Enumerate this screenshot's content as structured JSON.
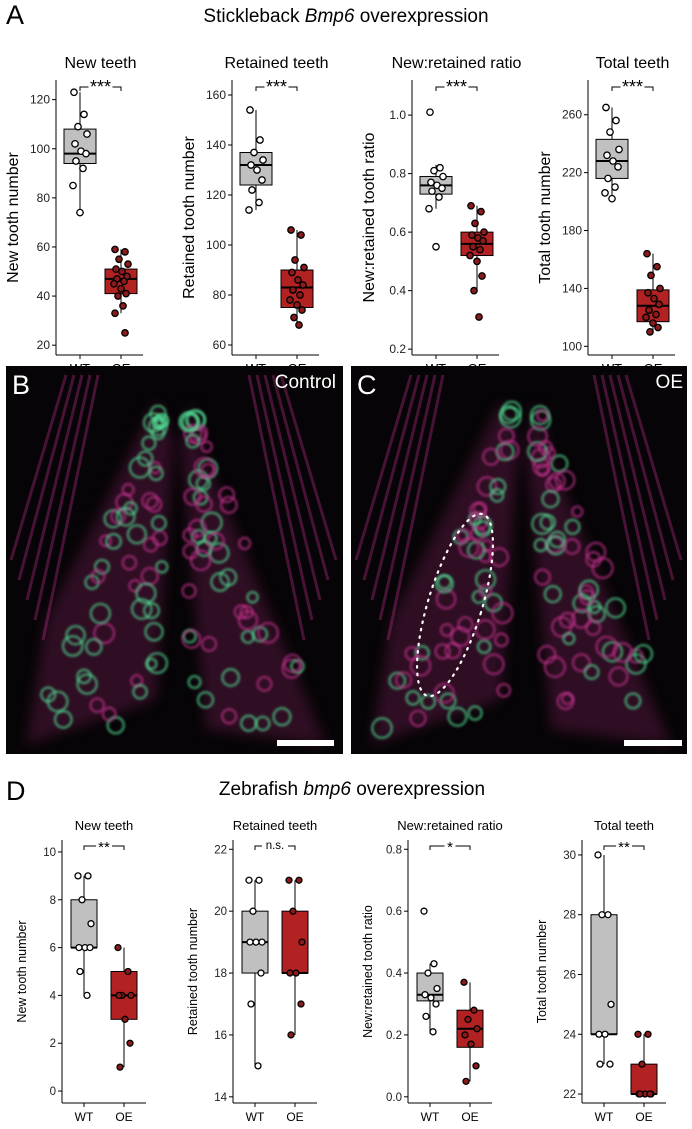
{
  "figure": {
    "panel_a": {
      "letter": "A",
      "title_prefix": "Stickleback ",
      "title_gene": "Bmp6",
      "title_suffix": " overexpression"
    },
    "panel_b": {
      "letter": "B",
      "label": "Control"
    },
    "panel_c": {
      "letter": "C",
      "label": "OE"
    },
    "panel_d": {
      "letter": "D",
      "title_prefix": "Zebrafish ",
      "title_gene": "bmp6",
      "title_suffix": " overexpression"
    }
  },
  "colors": {
    "wt_fill": "#c0c0c0",
    "oe_fill": "#b22222",
    "oe_point": "#8b1a1a",
    "wt_point": "#ffffff",
    "micrograph_bg": "#060406",
    "magenta": "#c0308a",
    "green": "#50d890"
  },
  "chart_data": [
    {
      "type": "box",
      "panel": "A",
      "title": "New teeth",
      "ylabel": "New tooth number",
      "categories": [
        "WT",
        "OE"
      ],
      "ylim": [
        16,
        128
      ],
      "yticks": [
        20,
        40,
        60,
        80,
        100,
        120
      ],
      "significance": "***",
      "series": [
        {
          "category": "WT",
          "box": {
            "min": 74,
            "q1": 94,
            "median": 98,
            "q3": 108,
            "max": 123
          },
          "points": [
            123,
            114,
            109,
            106,
            102,
            99,
            98,
            95,
            92,
            85,
            74
          ]
        },
        {
          "category": "OE",
          "box": {
            "min": 33,
            "q1": 41,
            "median": 47,
            "q3": 51,
            "max": 59
          },
          "points": [
            59,
            58,
            55,
            53,
            51,
            50,
            48,
            47,
            46,
            45,
            43,
            41,
            40,
            36,
            33,
            25
          ]
        }
      ]
    },
    {
      "type": "box",
      "panel": "A",
      "title": "Retained teeth",
      "ylabel": "Retained tooth number",
      "categories": [
        "WT",
        "OE"
      ],
      "ylim": [
        56,
        166
      ],
      "yticks": [
        60,
        80,
        100,
        120,
        140,
        160
      ],
      "significance": "***",
      "series": [
        {
          "category": "WT",
          "box": {
            "min": 114,
            "q1": 124,
            "median": 132,
            "q3": 137,
            "max": 154
          },
          "points": [
            154,
            142,
            137,
            134,
            132,
            130,
            126,
            122,
            117,
            114
          ]
        },
        {
          "category": "OE",
          "box": {
            "min": 68,
            "q1": 75,
            "median": 83,
            "q3": 90,
            "max": 106
          },
          "points": [
            106,
            104,
            94,
            91,
            89,
            86,
            84,
            82,
            80,
            78,
            76,
            74,
            71,
            68
          ]
        }
      ]
    },
    {
      "type": "box",
      "panel": "A",
      "title": "New:retained ratio",
      "ylabel": "New:retained tooth ratio",
      "categories": [
        "WT",
        "OE"
      ],
      "ylim": [
        0.18,
        1.12
      ],
      "yticks": [
        0.2,
        0.4,
        0.6,
        0.8,
        1.0
      ],
      "significance": "***",
      "series": [
        {
          "category": "WT",
          "box": {
            "min": 0.68,
            "q1": 0.73,
            "median": 0.76,
            "q3": 0.79,
            "max": 0.83
          },
          "points": [
            1.01,
            0.82,
            0.81,
            0.79,
            0.77,
            0.76,
            0.75,
            0.74,
            0.72,
            0.68,
            0.55
          ]
        },
        {
          "category": "OE",
          "box": {
            "min": 0.4,
            "q1": 0.52,
            "median": 0.56,
            "q3": 0.6,
            "max": 0.69
          },
          "points": [
            0.69,
            0.67,
            0.63,
            0.6,
            0.59,
            0.58,
            0.57,
            0.55,
            0.54,
            0.52,
            0.5,
            0.45,
            0.4,
            0.31
          ]
        }
      ]
    },
    {
      "type": "box",
      "panel": "A",
      "title": "Total teeth",
      "ylabel": "Total tooth number",
      "categories": [
        "WT",
        "OE"
      ],
      "ylim": [
        94,
        284
      ],
      "yticks": [
        100,
        140,
        180,
        220,
        260
      ],
      "significance": "***",
      "series": [
        {
          "category": "WT",
          "box": {
            "min": 202,
            "q1": 216,
            "median": 228,
            "q3": 243,
            "max": 265
          },
          "points": [
            265,
            256,
            248,
            236,
            232,
            228,
            224,
            216,
            210,
            206,
            202
          ]
        },
        {
          "category": "OE",
          "box": {
            "min": 110,
            "q1": 117,
            "median": 128,
            "q3": 139,
            "max": 164
          },
          "points": [
            164,
            155,
            149,
            140,
            137,
            133,
            129,
            125,
            122,
            120,
            116,
            113,
            110
          ]
        }
      ]
    },
    {
      "type": "box",
      "panel": "D",
      "title": "New teeth",
      "ylabel": "New tooth number",
      "categories": [
        "WT",
        "OE"
      ],
      "ylim": [
        -0.5,
        10.5
      ],
      "yticks": [
        0,
        2,
        4,
        6,
        8,
        10
      ],
      "significance": "**",
      "series": [
        {
          "category": "WT",
          "box": {
            "min": 4,
            "q1": 6,
            "median": 6,
            "q3": 8,
            "max": 9
          },
          "points": [
            9,
            9,
            8,
            7,
            6,
            6,
            6,
            5,
            4
          ]
        },
        {
          "category": "OE",
          "box": {
            "min": 1,
            "q1": 3,
            "median": 4,
            "q3": 5,
            "max": 6
          },
          "points": [
            6,
            5,
            4,
            4,
            4,
            3,
            2,
            1
          ]
        }
      ]
    },
    {
      "type": "box",
      "panel": "D",
      "title": "Retained teeth",
      "ylabel": "Retained tooth number",
      "categories": [
        "WT",
        "OE"
      ],
      "ylim": [
        13.8,
        22.3
      ],
      "yticks": [
        14,
        16,
        18,
        20,
        22
      ],
      "significance": "n.s.",
      "series": [
        {
          "category": "WT",
          "box": {
            "min": 15,
            "q1": 18,
            "median": 19,
            "q3": 20,
            "max": 21
          },
          "points": [
            21,
            21,
            20,
            19,
            19,
            19,
            18,
            17,
            15
          ]
        },
        {
          "category": "OE",
          "box": {
            "min": 16,
            "q1": 18,
            "median": 18,
            "q3": 20,
            "max": 21
          },
          "points": [
            21,
            21,
            20,
            19,
            18,
            18,
            17,
            16
          ]
        }
      ]
    },
    {
      "type": "box",
      "panel": "D",
      "title": "New:retained ratio",
      "ylabel": "New:retained tooth ratio",
      "categories": [
        "WT",
        "OE"
      ],
      "ylim": [
        -0.02,
        0.83
      ],
      "yticks": [
        0.0,
        0.2,
        0.4,
        0.6,
        0.8
      ],
      "significance": "*",
      "series": [
        {
          "category": "WT",
          "box": {
            "min": 0.21,
            "q1": 0.31,
            "median": 0.33,
            "q3": 0.4,
            "max": 0.43
          },
          "points": [
            0.6,
            0.43,
            0.4,
            0.35,
            0.33,
            0.32,
            0.3,
            0.26,
            0.21
          ]
        },
        {
          "category": "OE",
          "box": {
            "min": 0.05,
            "q1": 0.16,
            "median": 0.22,
            "q3": 0.28,
            "max": 0.37
          },
          "points": [
            0.37,
            0.28,
            0.25,
            0.22,
            0.2,
            0.17,
            0.1,
            0.05
          ]
        }
      ]
    },
    {
      "type": "box",
      "panel": "D",
      "title": "Total teeth",
      "ylabel": "Total tooth number",
      "categories": [
        "WT",
        "OE"
      ],
      "ylim": [
        21.7,
        30.5
      ],
      "yticks": [
        22,
        24,
        26,
        28,
        30
      ],
      "significance": "**",
      "series": [
        {
          "category": "WT",
          "box": {
            "min": 23,
            "q1": 24,
            "median": 24,
            "q3": 28,
            "max": 30
          },
          "points": [
            30,
            28,
            28,
            25,
            24,
            24,
            23,
            23
          ]
        },
        {
          "category": "OE",
          "box": {
            "min": 22,
            "q1": 22,
            "median": 22,
            "q3": 23,
            "max": 24
          },
          "points": [
            24,
            24,
            23,
            22,
            22,
            22,
            22,
            22
          ]
        }
      ]
    }
  ]
}
